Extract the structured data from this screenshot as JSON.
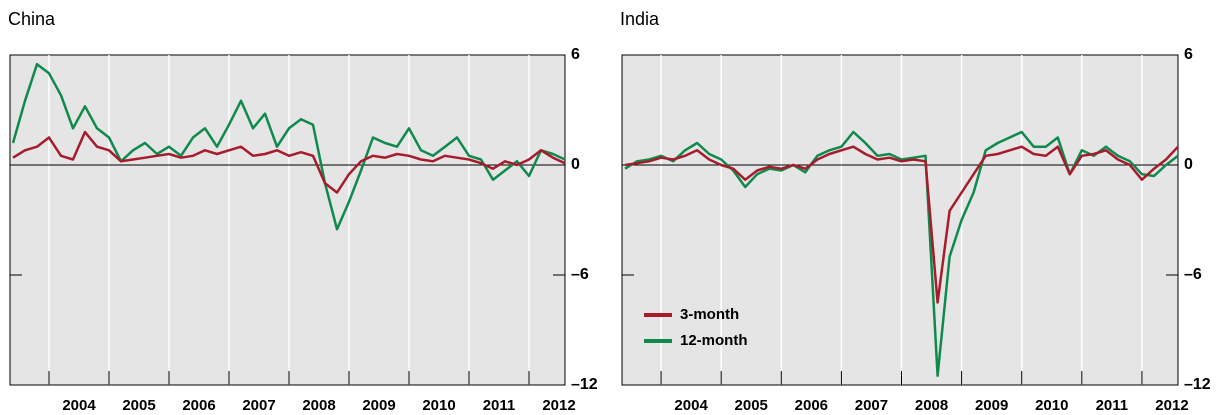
{
  "chart_data": [
    {
      "type": "line",
      "title": "China",
      "x": [
        2003.4,
        2003.6,
        2003.8,
        2004.0,
        2004.2,
        2004.4,
        2004.6,
        2004.8,
        2005.0,
        2005.2,
        2005.4,
        2005.6,
        2005.8,
        2006.0,
        2006.2,
        2006.4,
        2006.6,
        2006.8,
        2007.0,
        2007.2,
        2007.4,
        2007.6,
        2007.8,
        2008.0,
        2008.2,
        2008.4,
        2008.6,
        2008.8,
        2009.0,
        2009.2,
        2009.4,
        2009.6,
        2009.8,
        2010.0,
        2010.2,
        2010.4,
        2010.6,
        2010.8,
        2011.0,
        2011.2,
        2011.4,
        2011.6,
        2011.8,
        2012.0,
        2012.2,
        2012.4,
        2012.6
      ],
      "series": [
        {
          "color": "#0f8a4c",
          "values": [
            1.2,
            3.5,
            5.5,
            5.0,
            3.8,
            2.0,
            3.2,
            2.0,
            1.5,
            0.2,
            0.8,
            1.2,
            0.6,
            1.0,
            0.5,
            1.5,
            2.0,
            1.0,
            2.2,
            3.5,
            2.0,
            2.8,
            1.0,
            2.0,
            2.5,
            2.2,
            -1.0,
            -3.5,
            -2.0,
            -0.3,
            1.5,
            1.2,
            1.0,
            2.0,
            0.8,
            0.5,
            1.0,
            1.5,
            0.5,
            0.3,
            -0.8,
            -0.3,
            0.2,
            -0.6,
            0.8,
            0.6,
            0.3
          ]
        },
        {
          "color": "#a61c2c",
          "values": [
            0.4,
            0.8,
            1.0,
            1.5,
            0.5,
            0.3,
            1.8,
            1.0,
            0.8,
            0.2,
            0.3,
            0.4,
            0.5,
            0.6,
            0.4,
            0.5,
            0.8,
            0.6,
            0.8,
            1.0,
            0.5,
            0.6,
            0.8,
            0.5,
            0.7,
            0.5,
            -1.0,
            -1.5,
            -0.5,
            0.2,
            0.5,
            0.4,
            0.6,
            0.5,
            0.3,
            0.2,
            0.5,
            0.4,
            0.3,
            0.1,
            -0.2,
            0.2,
            0,
            0.3,
            0.8,
            0.4,
            0.1
          ]
        }
      ],
      "xlim": [
        2003.35,
        2012.6
      ],
      "xticks": [
        2004,
        2005,
        2006,
        2007,
        2008,
        2009,
        2010,
        2011,
        2012
      ],
      "ylim": [
        -12,
        6
      ],
      "yticks": [
        6,
        0,
        {
          "value": -6,
          "label": "–6"
        },
        {
          "value": -12,
          "label": "–12"
        }
      ]
    },
    {
      "type": "line",
      "title": "India",
      "x": [
        2003.4,
        2003.6,
        2003.8,
        2004.0,
        2004.2,
        2004.4,
        2004.6,
        2004.8,
        2005.0,
        2005.2,
        2005.4,
        2005.6,
        2005.8,
        2006.0,
        2006.2,
        2006.4,
        2006.6,
        2006.8,
        2007.0,
        2007.2,
        2007.4,
        2007.6,
        2007.8,
        2008.0,
        2008.2,
        2008.4,
        2008.6,
        2008.8,
        2009.0,
        2009.2,
        2009.4,
        2009.6,
        2009.8,
        2010.0,
        2010.2,
        2010.4,
        2010.6,
        2010.8,
        2011.0,
        2011.2,
        2011.4,
        2011.6,
        2011.8,
        2012.0,
        2012.2,
        2012.4,
        2012.6
      ],
      "series": [
        {
          "name": "12-month",
          "color": "#0f8a4c",
          "values": [
            -0.2,
            0.2,
            0.3,
            0.5,
            0.2,
            0.8,
            1.2,
            0.6,
            0.3,
            -0.3,
            -1.2,
            -0.5,
            -0.2,
            -0.3,
            0,
            -0.4,
            0.5,
            0.8,
            1.0,
            1.8,
            1.2,
            0.5,
            0.6,
            0.3,
            0.4,
            0.5,
            -11.5,
            -5,
            -3,
            -1.5,
            0.8,
            1.2,
            1.5,
            1.8,
            1.0,
            1.0,
            1.5,
            -0.5,
            0.8,
            0.5,
            1.0,
            0.5,
            0.2,
            -0.5,
            -0.6,
            0,
            0.5
          ]
        },
        {
          "name": "3-month",
          "color": "#a61c2c",
          "values": [
            0,
            0.1,
            0.2,
            0.4,
            0.3,
            0.5,
            0.8,
            0.3,
            0,
            -0.2,
            -0.8,
            -0.3,
            -0.1,
            -0.2,
            0,
            -0.2,
            0.3,
            0.6,
            0.8,
            1.0,
            0.6,
            0.3,
            0.4,
            0.2,
            0.3,
            0.2,
            -7.5,
            -2.5,
            -1.5,
            -0.5,
            0.5,
            0.6,
            0.8,
            1.0,
            0.6,
            0.5,
            1.0,
            -0.5,
            0.5,
            0.6,
            0.8,
            0.3,
            0,
            -0.8,
            -0.2,
            0.3,
            1.0
          ]
        }
      ],
      "xlim": [
        2003.35,
        2012.6
      ],
      "xticks": [
        2004,
        2005,
        2006,
        2007,
        2008,
        2009,
        2010,
        2011,
        2012
      ],
      "ylim": [
        -12,
        6
      ],
      "yticks": [
        6,
        0,
        {
          "value": -6,
          "label": "–6"
        },
        {
          "value": -12,
          "label": "–12"
        }
      ],
      "legend": "lower left"
    }
  ]
}
